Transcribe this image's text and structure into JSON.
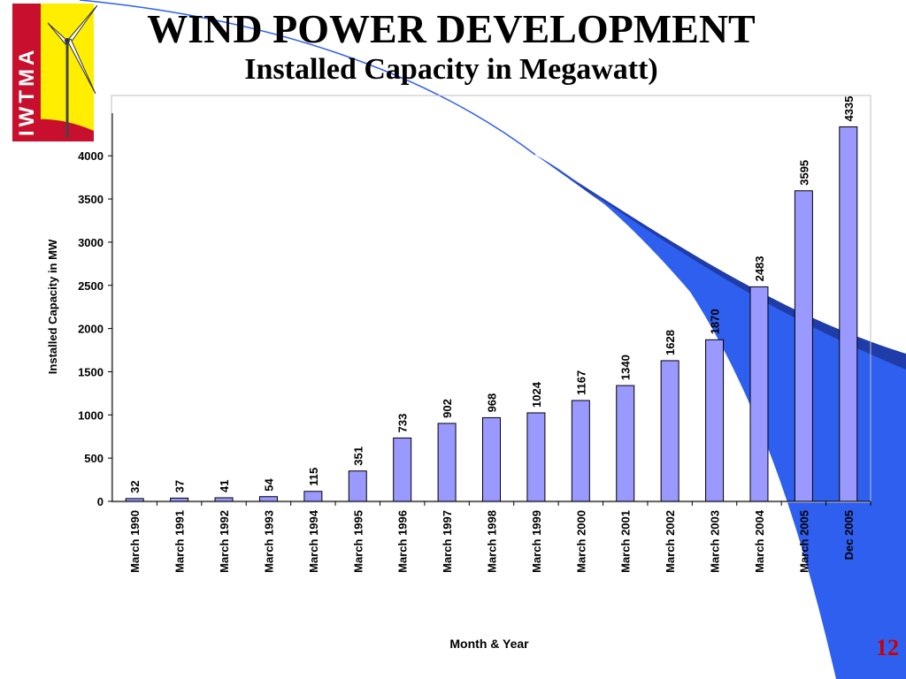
{
  "slide": {
    "title": "WIND POWER DEVELOPMENT",
    "subtitle": "Installed Capacity in Megawatt)",
    "slide_number": "12",
    "logo_text": "IWTMA"
  },
  "colors": {
    "bar_fill": "#9999ff",
    "bar_stroke": "#000000",
    "swoosh_dark": "#1f3ca8",
    "swoosh_light": "#2f5fef",
    "slide_number": "#cc0000",
    "logo_yellow": "#ffee00",
    "logo_red": "#c8102e"
  },
  "chart_data": {
    "type": "bar",
    "title": "",
    "xlabel": "Month & Year",
    "ylabel": "Installed Capacity in MW",
    "ylim": [
      0,
      4500
    ],
    "yticks": [
      0,
      500,
      1000,
      1500,
      2000,
      2500,
      3000,
      3500,
      4000
    ],
    "grid": false,
    "categories": [
      "March 1990",
      "March 1991",
      "March 1992",
      "March 1993",
      "March 1994",
      "March 1995",
      "March 1996",
      "March 1997",
      "March 1998",
      "March 1999",
      "March 2000",
      "March 2001",
      "March 2002",
      "March 2003",
      "March 2004",
      "March 2005",
      "Dec 2005"
    ],
    "values": [
      32,
      37,
      41,
      54,
      115,
      351,
      733,
      902,
      968,
      1024,
      1167,
      1340,
      1628,
      1870,
      2483,
      3595,
      4335
    ]
  }
}
